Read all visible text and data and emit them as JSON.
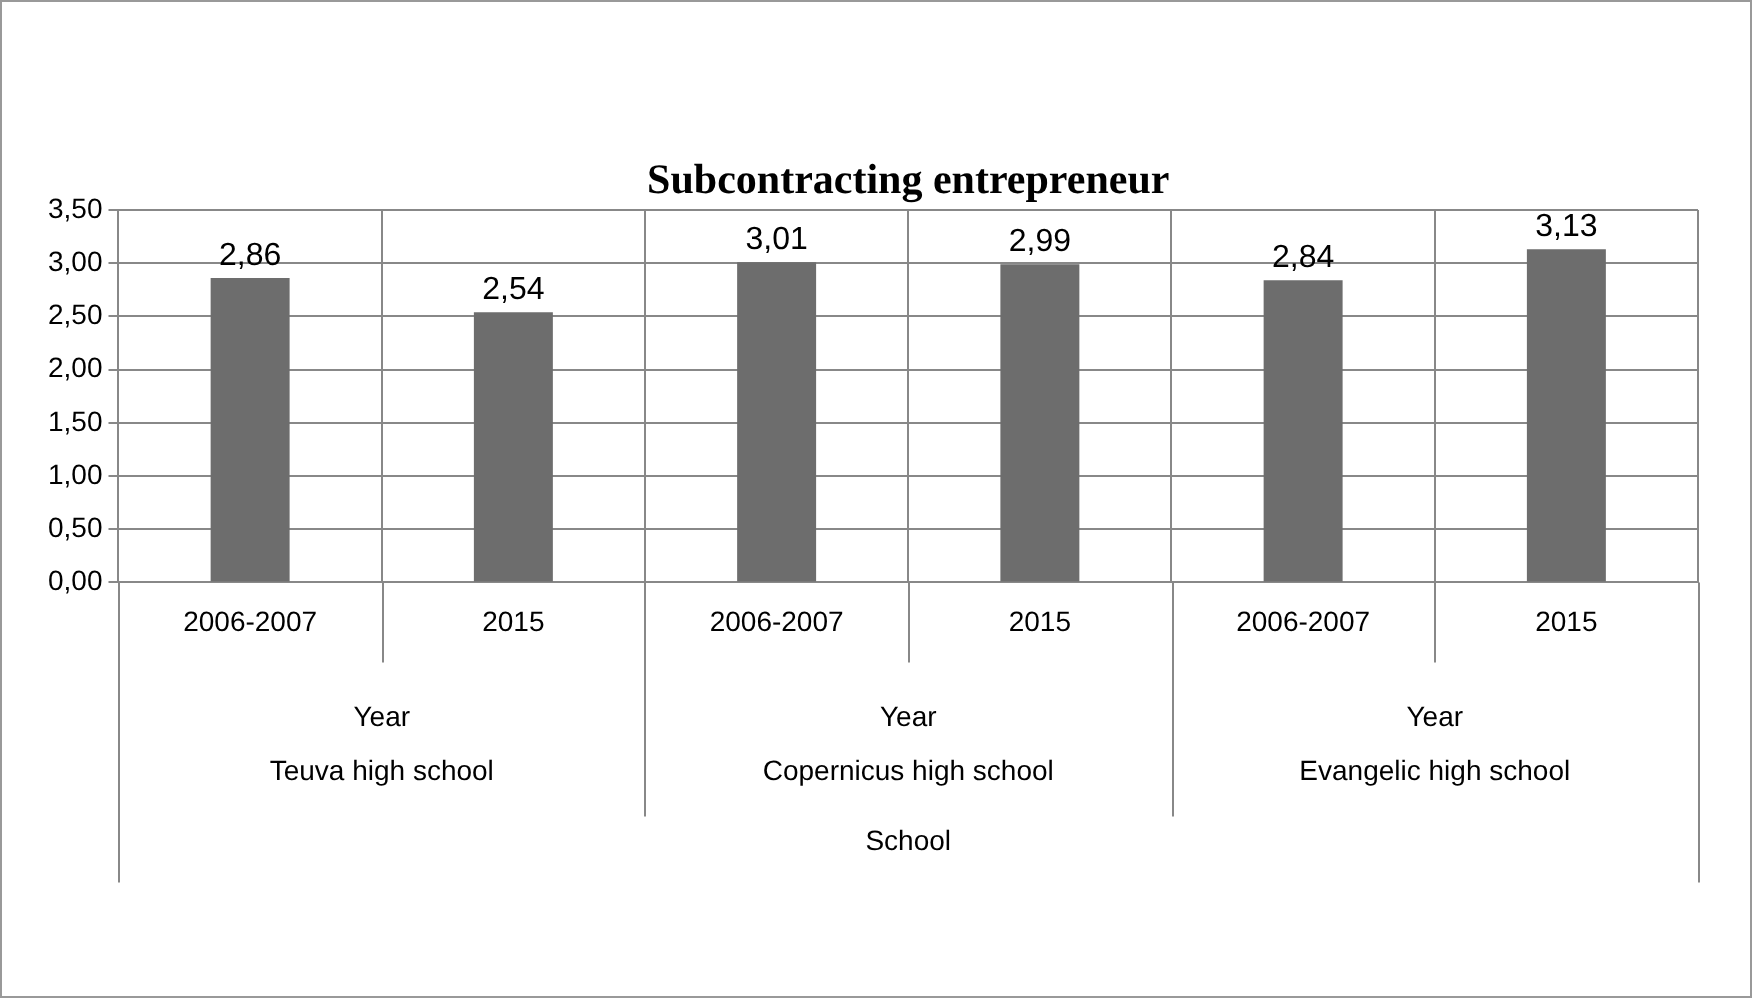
{
  "chart_data": {
    "type": "bar",
    "title": "Subcontracting entrepreneur",
    "categories": [
      "2006-2007",
      "2015",
      "2006-2007",
      "2015",
      "2006-2007",
      "2015"
    ],
    "values": [
      2.86,
      2.54,
      3.01,
      2.99,
      2.84,
      3.13
    ],
    "value_labels": [
      "2,86",
      "2,54",
      "3,01",
      "2,99",
      "2,84",
      "3,13"
    ],
    "color": "#6d6d6d",
    "ylim": [
      0,
      3.5
    ],
    "yticks": [
      {
        "value": 0,
        "label": "0,00"
      },
      {
        "value": 0.5,
        "label": "0,50"
      },
      {
        "value": 1,
        "label": "1,00"
      },
      {
        "value": 1.5,
        "label": "1,50"
      },
      {
        "value": 2,
        "label": "2,00"
      },
      {
        "value": 2.5,
        "label": "2,50"
      },
      {
        "value": 3,
        "label": "3,00"
      },
      {
        "value": 3.5,
        "label": "3,50"
      }
    ],
    "annotations": [
      "Year",
      "Teuva high school",
      "Year",
      "Copernicus high school",
      "Year",
      "Evangelic high school",
      "School"
    ],
    "grid": true,
    "legend": false
  }
}
